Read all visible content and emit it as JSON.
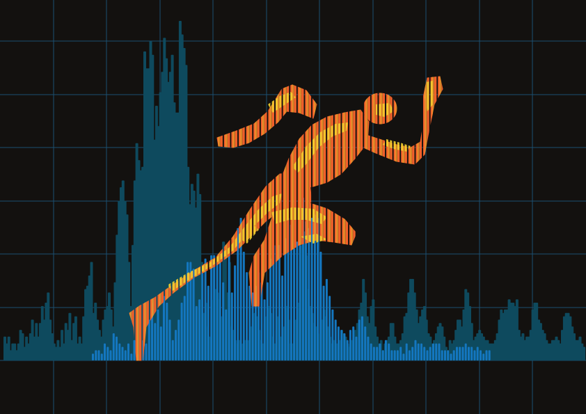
{
  "colors": {
    "background": "#13110f",
    "grid": "#1b4f70",
    "bar_back": "#0e4a5e",
    "bar_front": "#1477c0",
    "figure_primary": "#f0602a",
    "figure_secondary": "#f5962b",
    "figure_highlight": "#f4d12e"
  },
  "grid": {
    "columns": 11,
    "rows": 8
  },
  "chart_data": {
    "type": "bar",
    "series": [
      {
        "role": "background",
        "values": [
          0.07,
          0.05,
          0.07,
          0.03,
          0.05,
          0.05,
          0.03,
          0.05,
          0.09,
          0.08,
          0.04,
          0.07,
          0.05,
          0.08,
          0.12,
          0.07,
          0.11,
          0.07,
          0.11,
          0.16,
          0.12,
          0.17,
          0.2,
          0.12,
          0.08,
          0.05,
          0.04,
          0.06,
          0.04,
          0.09,
          0.05,
          0.11,
          0.09,
          0.14,
          0.06,
          0.11,
          0.13,
          0.05,
          0.07,
          0.05,
          0.13,
          0.21,
          0.22,
          0.25,
          0.29,
          0.14,
          0.17,
          0.12,
          0.09,
          0.07,
          0.12,
          0.15,
          0.16,
          0.2,
          0.15,
          0.1,
          0.23,
          0.37,
          0.47,
          0.51,
          0.53,
          0.47,
          0.43,
          0.29,
          0.16,
          0.34,
          0.53,
          0.64,
          0.59,
          0.56,
          0.57,
          0.91,
          0.86,
          0.86,
          0.94,
          0.9,
          0.65,
          0.75,
          0.69,
          0.79,
          0.85,
          0.95,
          0.89,
          0.82,
          0.85,
          0.9,
          0.76,
          0.73,
          0.73,
          1.0,
          0.96,
          0.92,
          0.87,
          0.57,
          0.46,
          0.52,
          0.5,
          0.45,
          0.55,
          0.49,
          0.29,
          0.14,
          0.17,
          0.1,
          0.07,
          0.15,
          0.18,
          0.21,
          0.2,
          0.18,
          0.13,
          0.35,
          0.34,
          0.2,
          0.29,
          0.1,
          0.09,
          0.06,
          0.05,
          0.06,
          0.04,
          0.05,
          0.06,
          0.04,
          0.06,
          0.1,
          0.11,
          0.14,
          0.13,
          0.09,
          0.06,
          0.05,
          0.11,
          0.13,
          0.16,
          0.14,
          0.07,
          0.05,
          0.09,
          0.13,
          0.07,
          0.06,
          0.1,
          0.16,
          0.12,
          0.05,
          0.05,
          0.08,
          0.12,
          0.17,
          0.28,
          0.34,
          0.38,
          0.31,
          0.21,
          0.16,
          0.14,
          0.11,
          0.1,
          0.05,
          0.08,
          0.12,
          0.15,
          0.13,
          0.1,
          0.07,
          0.05,
          0.06,
          0.05,
          0.05,
          0.06,
          0.09,
          0.08,
          0.07,
          0.05,
          0.04,
          0.06,
          0.06,
          0.09,
          0.11,
          0.15,
          0.17,
          0.24,
          0.2,
          0.13,
          0.11,
          0.16,
          0.18,
          0.1,
          0.07,
          0.05,
          0.06,
          0.03,
          0.05,
          0.06,
          0.07,
          0.11,
          0.11,
          0.07,
          0.05,
          0.05,
          0.06,
          0.08,
          0.13,
          0.14,
          0.2,
          0.24,
          0.24,
          0.2,
          0.15,
          0.11,
          0.13,
          0.15,
          0.16,
          0.12,
          0.08,
          0.07,
          0.05,
          0.06,
          0.08,
          0.1,
          0.11,
          0.1,
          0.07,
          0.04,
          0.03,
          0.06,
          0.05,
          0.06,
          0.09,
          0.12,
          0.12,
          0.1,
          0.15,
          0.21,
          0.2,
          0.16,
          0.11,
          0.06,
          0.07,
          0.08,
          0.09,
          0.08,
          0.07,
          0.06,
          0.06,
          0.05,
          0.05,
          0.05,
          0.06,
          0.08,
          0.12,
          0.15,
          0.14,
          0.15,
          0.15,
          0.18,
          0.17,
          0.17,
          0.16,
          0.18,
          0.09,
          0.07,
          0.08,
          0.06,
          0.07,
          0.07,
          0.09,
          0.15,
          0.17,
          0.17,
          0.12,
          0.11,
          0.09,
          0.08,
          0.06,
          0.05,
          0.05,
          0.06,
          0.06,
          0.07,
          0.06,
          0.05,
          0.09,
          0.13,
          0.14,
          0.14,
          0.13,
          0.1,
          0.08,
          0.06,
          0.06,
          0.07,
          0.05,
          0.04
        ]
      },
      {
        "role": "foreground",
        "values": [
          0.02,
          0.03,
          0.03,
          0.02,
          0.05,
          0.04,
          0.03,
          0.08,
          0.07,
          0.05,
          0.04,
          0.03,
          0.05,
          0.02,
          0.06,
          0.02,
          0.08,
          0.06,
          0.05,
          0.12,
          0.17,
          0.11,
          0.15,
          0.1,
          0.19,
          0.17,
          0.12,
          0.06,
          0.09,
          0.12,
          0.17,
          0.19,
          0.29,
          0.29,
          0.27,
          0.16,
          0.18,
          0.26,
          0.3,
          0.22,
          0.31,
          0.31,
          0.29,
          0.29,
          0.23,
          0.15,
          0.34,
          0.2,
          0.28,
          0.39,
          0.42,
          0.32,
          0.26,
          0.22,
          0.2,
          0.22,
          0.26,
          0.23,
          0.18,
          0.23,
          0.3,
          0.34,
          0.34,
          0.34,
          0.25,
          0.36,
          0.42,
          0.4,
          0.33,
          0.35,
          0.34,
          0.48,
          0.41,
          0.39,
          0.42,
          0.43,
          0.42,
          0.32,
          0.22,
          0.24,
          0.19,
          0.15,
          0.12,
          0.1,
          0.09,
          0.08,
          0.06,
          0.09,
          0.1,
          0.07,
          0.12,
          0.13,
          0.1,
          0.07,
          0.05,
          0.04,
          0.04,
          0.05,
          0.03,
          0.06,
          0.05,
          0.03,
          0.03,
          0.03,
          0.04,
          0.02,
          0.05,
          0.03,
          0.04,
          0.06,
          0.05,
          0.05,
          0.04,
          0.03,
          0.04,
          0.05,
          0.05,
          0.05,
          0.03,
          0.03,
          0.03,
          0.02,
          0.03,
          0.04,
          0.04,
          0.04,
          0.05,
          0.04,
          0.04,
          0.03,
          0.04,
          0.03,
          0.02,
          0.03,
          0.03
        ]
      }
    ],
    "title": "",
    "xlabel": "",
    "ylabel": ""
  },
  "runner": {
    "shape": "sprinter-silhouette",
    "encoding": "vertical-bars"
  }
}
